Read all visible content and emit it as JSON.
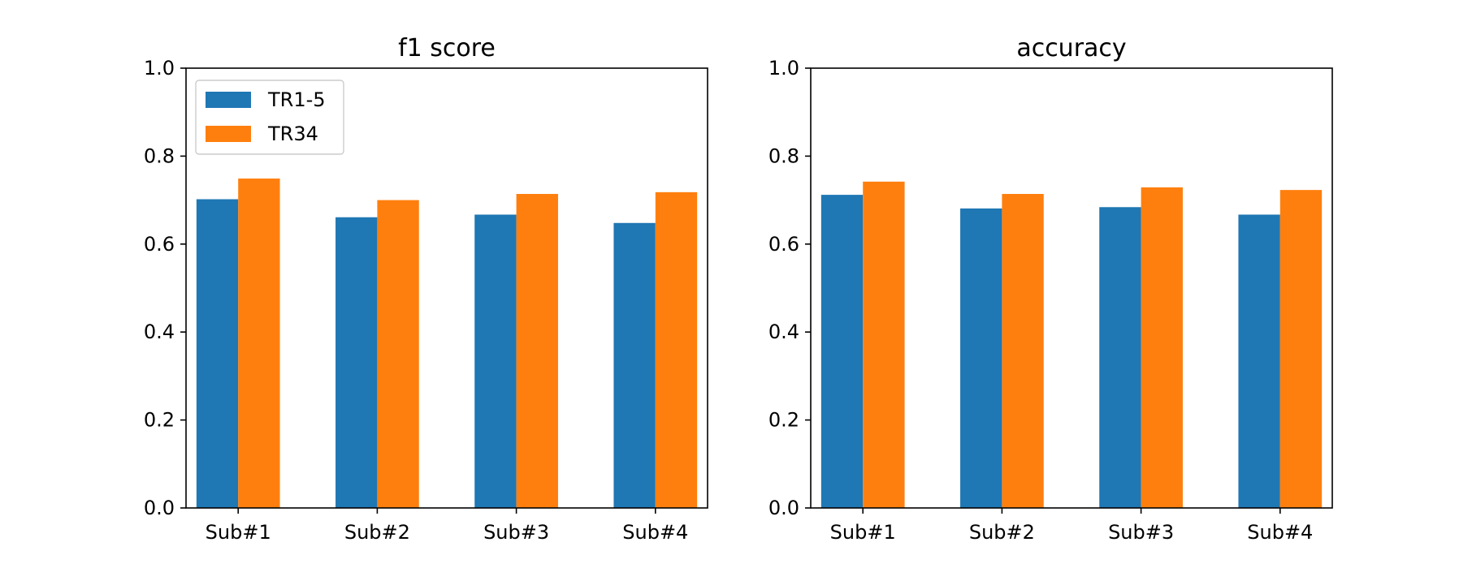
{
  "chart_data": [
    {
      "type": "bar",
      "title": "f1 score",
      "categories": [
        "Sub#1",
        "Sub#2",
        "Sub#3",
        "Sub#4"
      ],
      "series": [
        {
          "name": "TR1-5",
          "values": [
            0.702,
            0.661,
            0.667,
            0.648
          ]
        },
        {
          "name": "TR34",
          "values": [
            0.749,
            0.7,
            0.714,
            0.718
          ]
        }
      ],
      "ylim": [
        0,
        1.0
      ],
      "yticks": [
        "0.0",
        "0.2",
        "0.4",
        "0.6",
        "0.8",
        "1.0"
      ],
      "legend": "top-left",
      "grid": false
    },
    {
      "type": "bar",
      "title": "accuracy",
      "categories": [
        "Sub#1",
        "Sub#2",
        "Sub#3",
        "Sub#4"
      ],
      "series": [
        {
          "name": "TR1-5",
          "values": [
            0.712,
            0.681,
            0.684,
            0.667
          ]
        },
        {
          "name": "TR34",
          "values": [
            0.742,
            0.714,
            0.729,
            0.723
          ]
        }
      ],
      "ylim": [
        0,
        1.0
      ],
      "yticks": [
        "0.0",
        "0.2",
        "0.4",
        "0.6",
        "0.8",
        "1.0"
      ],
      "legend": "none",
      "grid": false
    }
  ],
  "colors": {
    "TR1-5": "#1f77b4",
    "TR34": "#ff7f0e"
  }
}
